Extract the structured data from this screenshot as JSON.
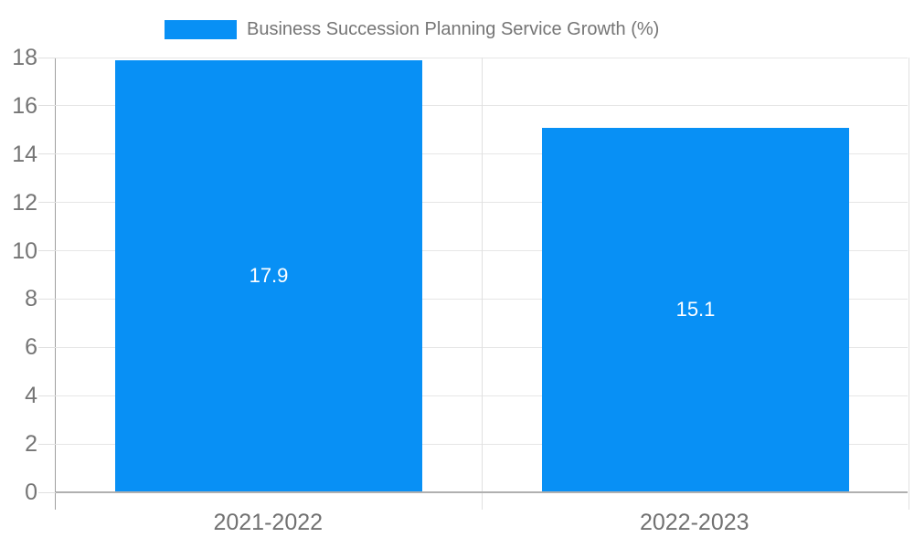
{
  "legend": {
    "label": "Business Succession Planning Service Growth (%)"
  },
  "chart_data": {
    "type": "bar",
    "title": "Business Succession Planning Service Growth (%)",
    "categories": [
      "2021-2022",
      "2022-2023"
    ],
    "values": [
      17.9,
      15.1
    ],
    "bar_labels": [
      "17.9",
      "15.1"
    ],
    "xlabel": "",
    "ylabel": "",
    "ylim": [
      0,
      18
    ],
    "yticks": [
      0,
      2,
      4,
      6,
      8,
      10,
      12,
      14,
      16,
      18
    ],
    "grid": true,
    "legend_position": "top",
    "colors": {
      "bar": "#0890f5",
      "bar_value_text": "#ffffff",
      "axis_text": "#757575",
      "gridline": "#e6e6e6",
      "axis_line": "#9e9e9e",
      "baseline": "#b0b0b0",
      "divider": "#e0e0e0",
      "background": "#ffffff"
    }
  }
}
